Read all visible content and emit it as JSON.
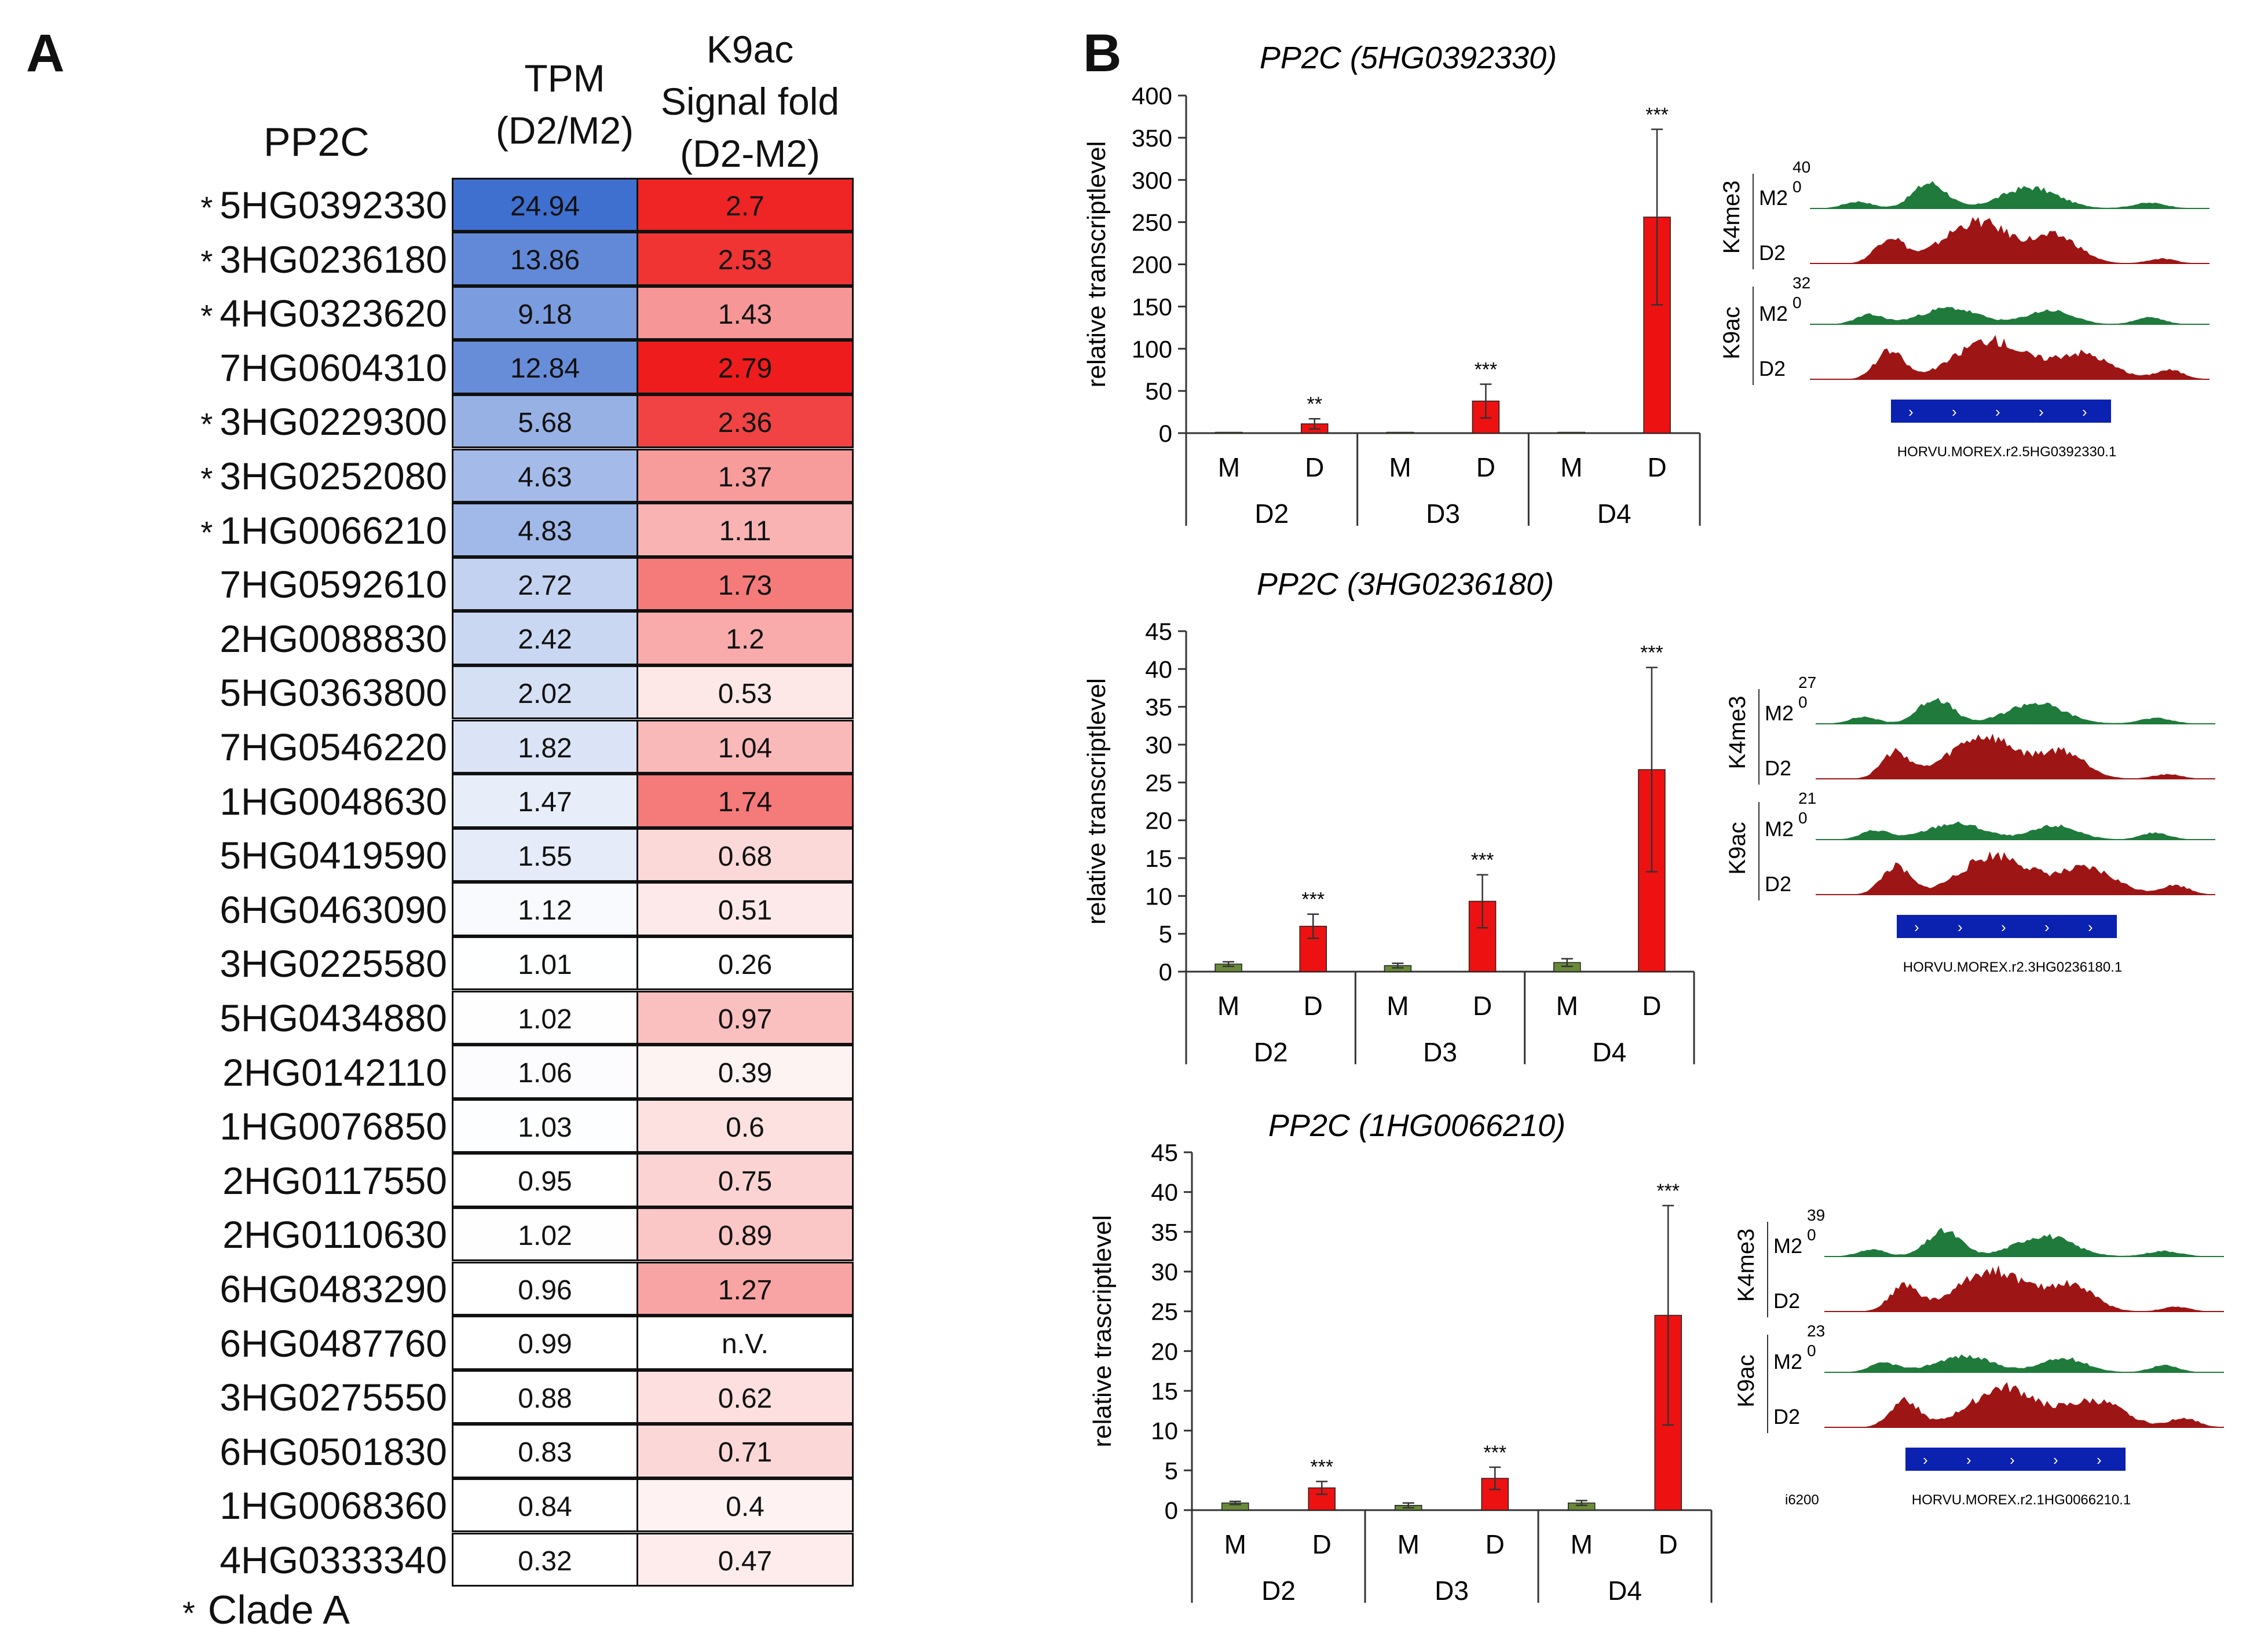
{
  "panel_a": {
    "label": "A",
    "row_header": "PP2C",
    "col1_header_line1": "TPM",
    "col1_header_line2": "(D2/M2)",
    "col2_header_line1": "K9ac",
    "col2_header_line2": "Signal fold",
    "col2_header_line3": "(D2-M2)",
    "footnote_marker": "*",
    "footnote_text": "Clade A",
    "rows": [
      {
        "gene": "5HG0392330",
        "clade_a": true,
        "tpm": "24.94",
        "k9ac": "2.7"
      },
      {
        "gene": "3HG0236180",
        "clade_a": true,
        "tpm": "13.86",
        "k9ac": "2.53"
      },
      {
        "gene": "4HG0323620",
        "clade_a": true,
        "tpm": "9.18",
        "k9ac": "1.43"
      },
      {
        "gene": "7HG0604310",
        "clade_a": false,
        "tpm": "12.84",
        "k9ac": "2.79"
      },
      {
        "gene": "3HG0229300",
        "clade_a": true,
        "tpm": "5.68",
        "k9ac": "2.36"
      },
      {
        "gene": "3HG0252080",
        "clade_a": true,
        "tpm": "4.63",
        "k9ac": "1.37"
      },
      {
        "gene": "1HG0066210",
        "clade_a": true,
        "tpm": "4.83",
        "k9ac": "1.11"
      },
      {
        "gene": "7HG0592610",
        "clade_a": false,
        "tpm": "2.72",
        "k9ac": "1.73"
      },
      {
        "gene": "2HG0088830",
        "clade_a": false,
        "tpm": "2.42",
        "k9ac": "1.2"
      },
      {
        "gene": "5HG0363800",
        "clade_a": false,
        "tpm": "2.02",
        "k9ac": "0.53"
      },
      {
        "gene": "7HG0546220",
        "clade_a": false,
        "tpm": "1.82",
        "k9ac": "1.04"
      },
      {
        "gene": "1HG0048630",
        "clade_a": false,
        "tpm": "1.47",
        "k9ac": "1.74"
      },
      {
        "gene": "5HG0419590",
        "clade_a": false,
        "tpm": "1.55",
        "k9ac": "0.68"
      },
      {
        "gene": "6HG0463090",
        "clade_a": false,
        "tpm": "1.12",
        "k9ac": "0.51"
      },
      {
        "gene": "3HG0225580",
        "clade_a": false,
        "tpm": "1.01",
        "k9ac": "0.26"
      },
      {
        "gene": "5HG0434880",
        "clade_a": false,
        "tpm": "1.02",
        "k9ac": "0.97"
      },
      {
        "gene": "2HG0142110",
        "clade_a": false,
        "tpm": "1.06",
        "k9ac": "0.39"
      },
      {
        "gene": "1HG0076850",
        "clade_a": false,
        "tpm": "1.03",
        "k9ac": "0.6"
      },
      {
        "gene": "2HG0117550",
        "clade_a": false,
        "tpm": "0.95",
        "k9ac": "0.75"
      },
      {
        "gene": "2HG0110630",
        "clade_a": false,
        "tpm": "1.02",
        "k9ac": "0.89"
      },
      {
        "gene": "6HG0483290",
        "clade_a": false,
        "tpm": "0.96",
        "k9ac": "1.27"
      },
      {
        "gene": "6HG0487760",
        "clade_a": false,
        "tpm": "0.99",
        "k9ac": "n.V."
      },
      {
        "gene": "3HG0275550",
        "clade_a": false,
        "tpm": "0.88",
        "k9ac": "0.62"
      },
      {
        "gene": "6HG0501830",
        "clade_a": false,
        "tpm": "0.83",
        "k9ac": "0.71"
      },
      {
        "gene": "1HG0068360",
        "clade_a": false,
        "tpm": "0.84",
        "k9ac": "0.4"
      },
      {
        "gene": "4HG0333340",
        "clade_a": false,
        "tpm": "0.32",
        "k9ac": "0.47"
      }
    ],
    "colors": {
      "blue_max": "#3f6fcf",
      "red_max": "#ee1c1c",
      "white": "#ffffff",
      "grid": "#111111"
    }
  },
  "panel_b": {
    "label": "B",
    "colors": {
      "mock": "#6a8a3a",
      "drought": "#ee1111",
      "m2_track": "#1f7a3c",
      "d2_track": "#9e1515",
      "gene_model": "#0b21b0"
    },
    "charts": [
      {
        "title": "PP2C (5HG0392330)",
        "ylabel": "relative transcriptlevel",
        "yticks": [
          "0",
          "50",
          "100",
          "150",
          "200",
          "250",
          "300",
          "350",
          "400"
        ],
        "ymax": 400,
        "bars": [
          {
            "x": "M",
            "group": "D2",
            "value": 1,
            "err": 0,
            "sig": ""
          },
          {
            "x": "D",
            "group": "D2",
            "value": 11,
            "err": 6,
            "sig": "**"
          },
          {
            "x": "M",
            "group": "D3",
            "value": 1,
            "err": 0,
            "sig": ""
          },
          {
            "x": "D",
            "group": "D3",
            "value": 38,
            "err": 20,
            "sig": "***"
          },
          {
            "x": "M",
            "group": "D4",
            "value": 1,
            "err": 0,
            "sig": ""
          },
          {
            "x": "D",
            "group": "D4",
            "value": 256,
            "err": 104,
            "sig": "***"
          }
        ],
        "groups": [
          "D2",
          "D3",
          "D4"
        ],
        "tracks": {
          "mark1": "K4me3",
          "scale1_top": "40",
          "scale1_bot": "0",
          "mark2": "K9ac",
          "scale2_top": "32",
          "scale2_bot": "0",
          "m2": "M2",
          "d2": "D2",
          "gene_id": "HORVU.MOREX.r2.5HG0392330.1",
          "side_label": ""
        }
      },
      {
        "title": "PP2C (3HG0236180)",
        "ylabel": "relative transcriptlevel",
        "yticks": [
          "0",
          "5",
          "10",
          "15",
          "20",
          "25",
          "30",
          "35",
          "40",
          "45"
        ],
        "ymax": 45,
        "bars": [
          {
            "x": "M",
            "group": "D2",
            "value": 1,
            "err": 0.3,
            "sig": ""
          },
          {
            "x": "D",
            "group": "D2",
            "value": 6,
            "err": 1.6,
            "sig": "***"
          },
          {
            "x": "M",
            "group": "D3",
            "value": 0.8,
            "err": 0.3,
            "sig": ""
          },
          {
            "x": "D",
            "group": "D3",
            "value": 9.3,
            "err": 3.5,
            "sig": "***"
          },
          {
            "x": "M",
            "group": "D4",
            "value": 1.2,
            "err": 0.5,
            "sig": ""
          },
          {
            "x": "D",
            "group": "D4",
            "value": 26.7,
            "err": 13.5,
            "sig": "***"
          }
        ],
        "groups": [
          "D2",
          "D3",
          "D4"
        ],
        "tracks": {
          "mark1": "K4me3",
          "scale1_top": "27",
          "scale1_bot": "0",
          "mark2": "K9ac",
          "scale2_top": "21",
          "scale2_bot": "0",
          "m2": "M2",
          "d2": "D2",
          "gene_id": "HORVU.MOREX.r2.3HG0236180.1",
          "side_label": ""
        }
      },
      {
        "title": "PP2C (1HG0066210)",
        "ylabel": "relative trascriptlevel",
        "yticks": [
          "0",
          "5",
          "10",
          "15",
          "20",
          "25",
          "30",
          "35",
          "40",
          "45"
        ],
        "ymax": 45,
        "bars": [
          {
            "x": "M",
            "group": "D2",
            "value": 0.9,
            "err": 0.2,
            "sig": ""
          },
          {
            "x": "D",
            "group": "D2",
            "value": 2.8,
            "err": 0.8,
            "sig": "***"
          },
          {
            "x": "M",
            "group": "D3",
            "value": 0.6,
            "err": 0.3,
            "sig": ""
          },
          {
            "x": "D",
            "group": "D3",
            "value": 4,
            "err": 1.4,
            "sig": "***"
          },
          {
            "x": "M",
            "group": "D4",
            "value": 0.9,
            "err": 0.3,
            "sig": ""
          },
          {
            "x": "D",
            "group": "D4",
            "value": 24.5,
            "err": 13.8,
            "sig": "***"
          }
        ],
        "groups": [
          "D2",
          "D3",
          "D4"
        ],
        "tracks": {
          "mark1": "K4me3",
          "scale1_top": "39",
          "scale1_bot": "0",
          "mark2": "K9ac",
          "scale2_top": "23",
          "scale2_bot": "0",
          "m2": "M2",
          "d2": "D2",
          "gene_id": "HORVU.MOREX.r2.1HG0066210.1",
          "side_label": "i6200"
        }
      }
    ]
  }
}
